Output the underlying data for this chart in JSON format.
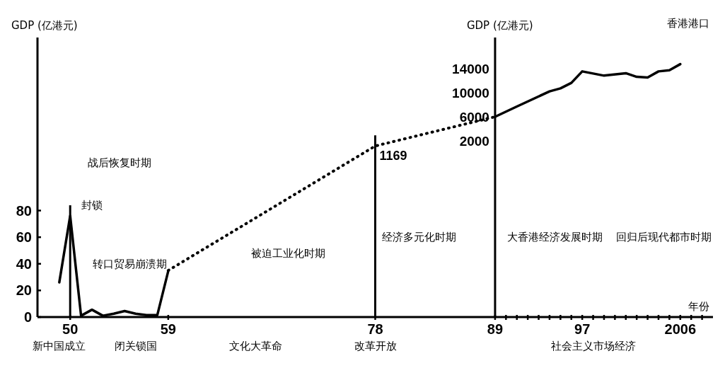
{
  "chart_data": {
    "type": "line",
    "title": "香港港口",
    "xlabel": "年份",
    "ylabel": "GDP (亿港元)",
    "y2label": "GDP (亿港元)",
    "xlim": [
      1947,
      2009
    ],
    "xticks": [
      {
        "value": 1950,
        "label": "50"
      },
      {
        "value": 1959,
        "label": "59"
      },
      {
        "value": 1978,
        "label": "78"
      },
      {
        "value": 1989,
        "label": "89"
      },
      {
        "value": 1990,
        "label": null
      },
      {
        "value": 1991,
        "label": null
      },
      {
        "value": 1992,
        "label": null
      },
      {
        "value": 1993,
        "label": null
      },
      {
        "value": 1994,
        "label": null
      },
      {
        "value": 1995,
        "label": null
      },
      {
        "value": 1996,
        "label": null
      },
      {
        "value": 1997,
        "label": "97"
      },
      {
        "value": 1998,
        "label": null
      },
      {
        "value": 1999,
        "label": null
      },
      {
        "value": 2000,
        "label": null
      },
      {
        "value": 2001,
        "label": null
      },
      {
        "value": 2002,
        "label": null
      },
      {
        "value": 2003,
        "label": null
      },
      {
        "value": 2004,
        "label": null
      },
      {
        "value": 2005,
        "label": null
      },
      {
        "value": 2006,
        "label": "2006"
      },
      {
        "value": 2007,
        "label": null
      },
      {
        "value": 2008,
        "label": null
      }
    ],
    "ylim": [
      0,
      210
    ],
    "yticks": [
      0,
      20,
      40,
      60,
      80
    ],
    "y2lim": [
      -27100,
      19100
    ],
    "y2ticks": [
      2000,
      6000,
      10000,
      14000
    ],
    "ref_lines": [
      {
        "axis": "x",
        "value": 1950
      },
      {
        "axis": "x",
        "value": 1978
      }
    ],
    "series": [
      {
        "color": "#000000",
        "x": [
          1949,
          1950,
          1951,
          1952,
          1953,
          1954,
          1955,
          1956,
          1957,
          1958,
          1959
        ],
        "values": [
          26,
          76,
          1,
          5.5,
          1,
          2.5,
          4.5,
          2.5,
          1.5,
          1.5,
          34.5
        ]
      },
      {
        "color": "#000000",
        "axis": "y2",
        "line_style": "dotted",
        "x": [
          1959,
          1978,
          1989
        ],
        "values": [
          -19400,
          1169,
          6000
        ],
        "value_labels": [
          null,
          "1169",
          null
        ]
      },
      {
        "color": "#000000",
        "axis": "y2",
        "x": [
          1989,
          1991,
          1994,
          1995,
          1996,
          1997,
          1999,
          2001,
          2002,
          2003,
          2004,
          2005,
          2006
        ],
        "values": [
          6000,
          7700,
          10200,
          10700,
          11600,
          13500,
          12800,
          13200,
          12600,
          12500,
          13500,
          13700,
          14700
        ]
      }
    ],
    "annotations": [
      "战后恢复时期",
      "封锁",
      "转口贸易崩溃期",
      "被迫工业化时期",
      "经济多元化时期",
      "大香港经济发展时期",
      "回归后现代都市时期",
      "新中国成立",
      "闭关锁国",
      "文化大革命",
      "改革开放",
      "社会主义市场经济"
    ]
  }
}
